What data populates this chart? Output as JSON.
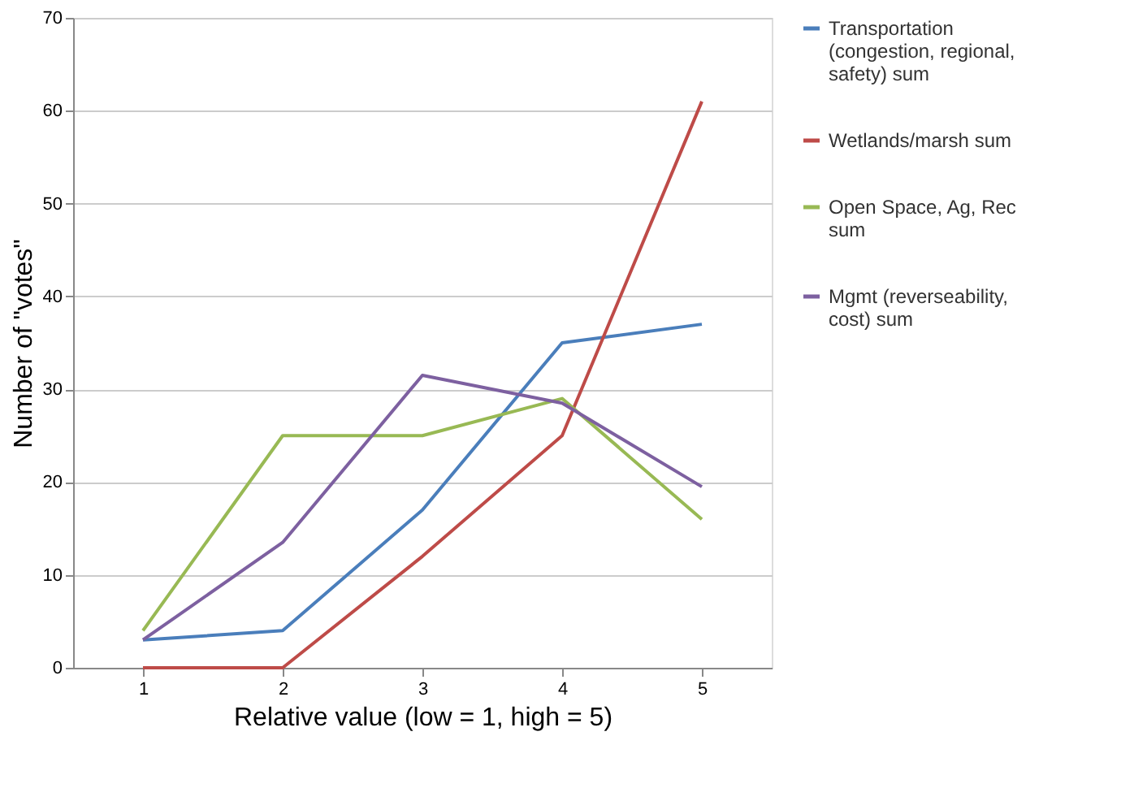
{
  "chart_data": {
    "type": "line",
    "xlabel": "Relative value (low = 1, high = 5)",
    "ylabel": "Number of \"votes\"",
    "categories": [
      "1",
      "2",
      "3",
      "4",
      "5"
    ],
    "ylim": [
      0,
      70
    ],
    "yticks": [
      0,
      10,
      20,
      30,
      40,
      50,
      60,
      70
    ],
    "grid": "y",
    "legend": "right",
    "marker": "none",
    "line_style": "solid",
    "series": [
      {
        "name": "Transportation (congestion, regional, safety) sum",
        "color": "#4a7ebb",
        "values": [
          3,
          4,
          17,
          35,
          37
        ]
      },
      {
        "name": "Wetlands/marsh sum",
        "color": "#be4b48",
        "values": [
          0,
          0,
          12,
          25,
          61
        ]
      },
      {
        "name": "Open Space, Ag, Rec sum",
        "color": "#98b954",
        "values": [
          4,
          25,
          25,
          29,
          16
        ]
      },
      {
        "name": "Mgmt (reverseability, cost) sum",
        "color": "#7d60a0",
        "values": [
          3,
          13.5,
          31.5,
          28.5,
          19.5
        ]
      }
    ]
  }
}
